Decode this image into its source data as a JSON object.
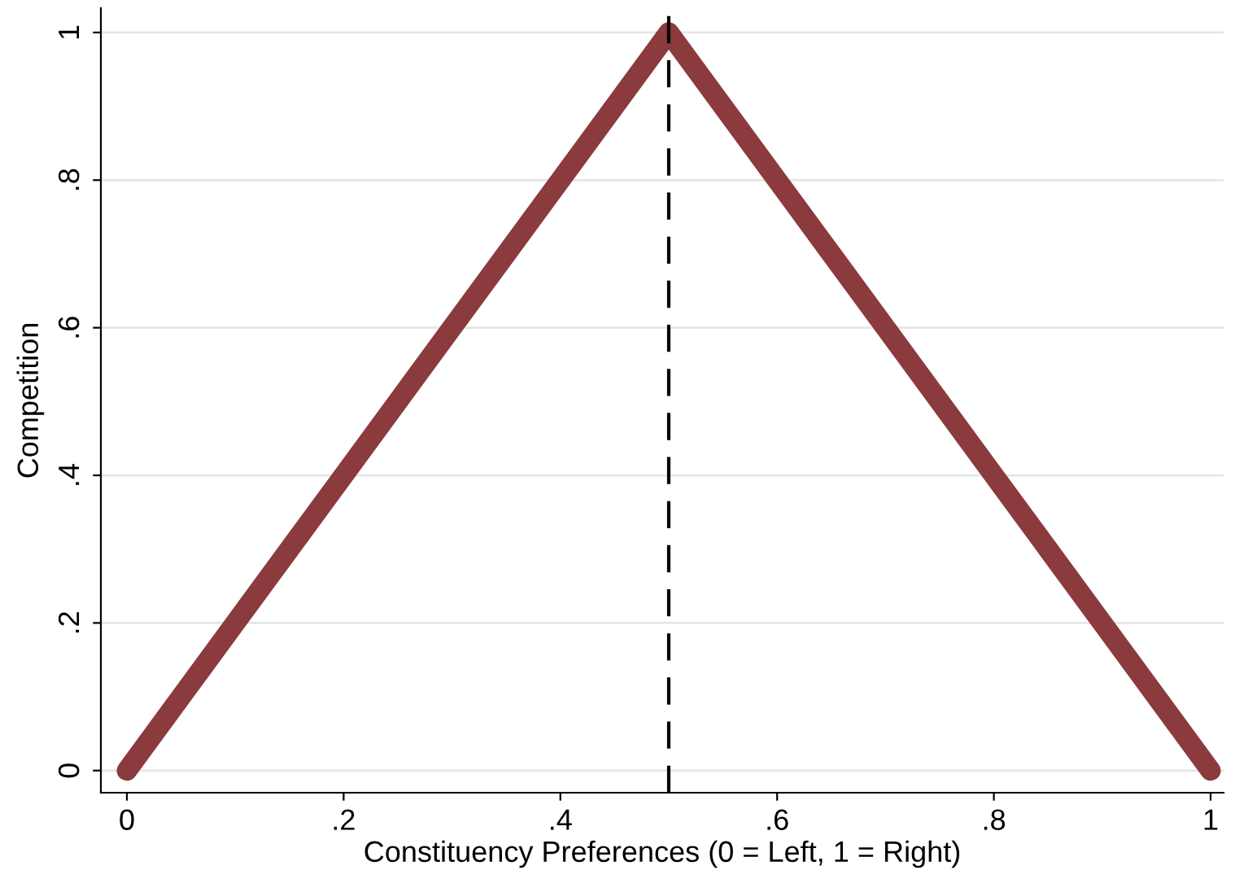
{
  "chart_data": {
    "type": "line",
    "xlabel": "Constituency Preferences (0 = Left, 1 = Right)",
    "ylabel": "Competition",
    "x": [
      0,
      0.05,
      0.1,
      0.15,
      0.2,
      0.25,
      0.3,
      0.35,
      0.4,
      0.45,
      0.5,
      0.55,
      0.6,
      0.65,
      0.7,
      0.75,
      0.8,
      0.85,
      0.9,
      0.95,
      1
    ],
    "series": [
      {
        "color": "#8b3a3e",
        "values": [
          0,
          0.1,
          0.2,
          0.3,
          0.4,
          0.5,
          0.6,
          0.7,
          0.8,
          0.9,
          1,
          0.9,
          0.8,
          0.7,
          0.6,
          0.5,
          0.4,
          0.3,
          0.2,
          0.1,
          0
        ]
      }
    ],
    "xlim": [
      -0.024,
      1.012
    ],
    "ylim": [
      -0.03,
      1.033
    ],
    "xticks": [
      {
        "value": 0,
        "label": "0"
      },
      {
        "value": 0.2,
        "label": ".2"
      },
      {
        "value": 0.4,
        "label": ".4"
      },
      {
        "value": 0.6,
        "label": ".6"
      },
      {
        "value": 0.8,
        "label": ".8"
      },
      {
        "value": 1,
        "label": "1"
      }
    ],
    "yticks": [
      {
        "value": 0,
        "label": "0"
      },
      {
        "value": 0.2,
        "label": ".2"
      },
      {
        "value": 0.4,
        "label": ".4"
      },
      {
        "value": 0.6,
        "label": ".6"
      },
      {
        "value": 0.8,
        "label": ".8"
      },
      {
        "value": 1,
        "label": "1"
      }
    ],
    "grid": "y",
    "line_style": "solid",
    "ref_lines": [
      {
        "axis": "x",
        "value": 0.5,
        "color": "#000000",
        "line_style": "dashed"
      }
    ]
  }
}
